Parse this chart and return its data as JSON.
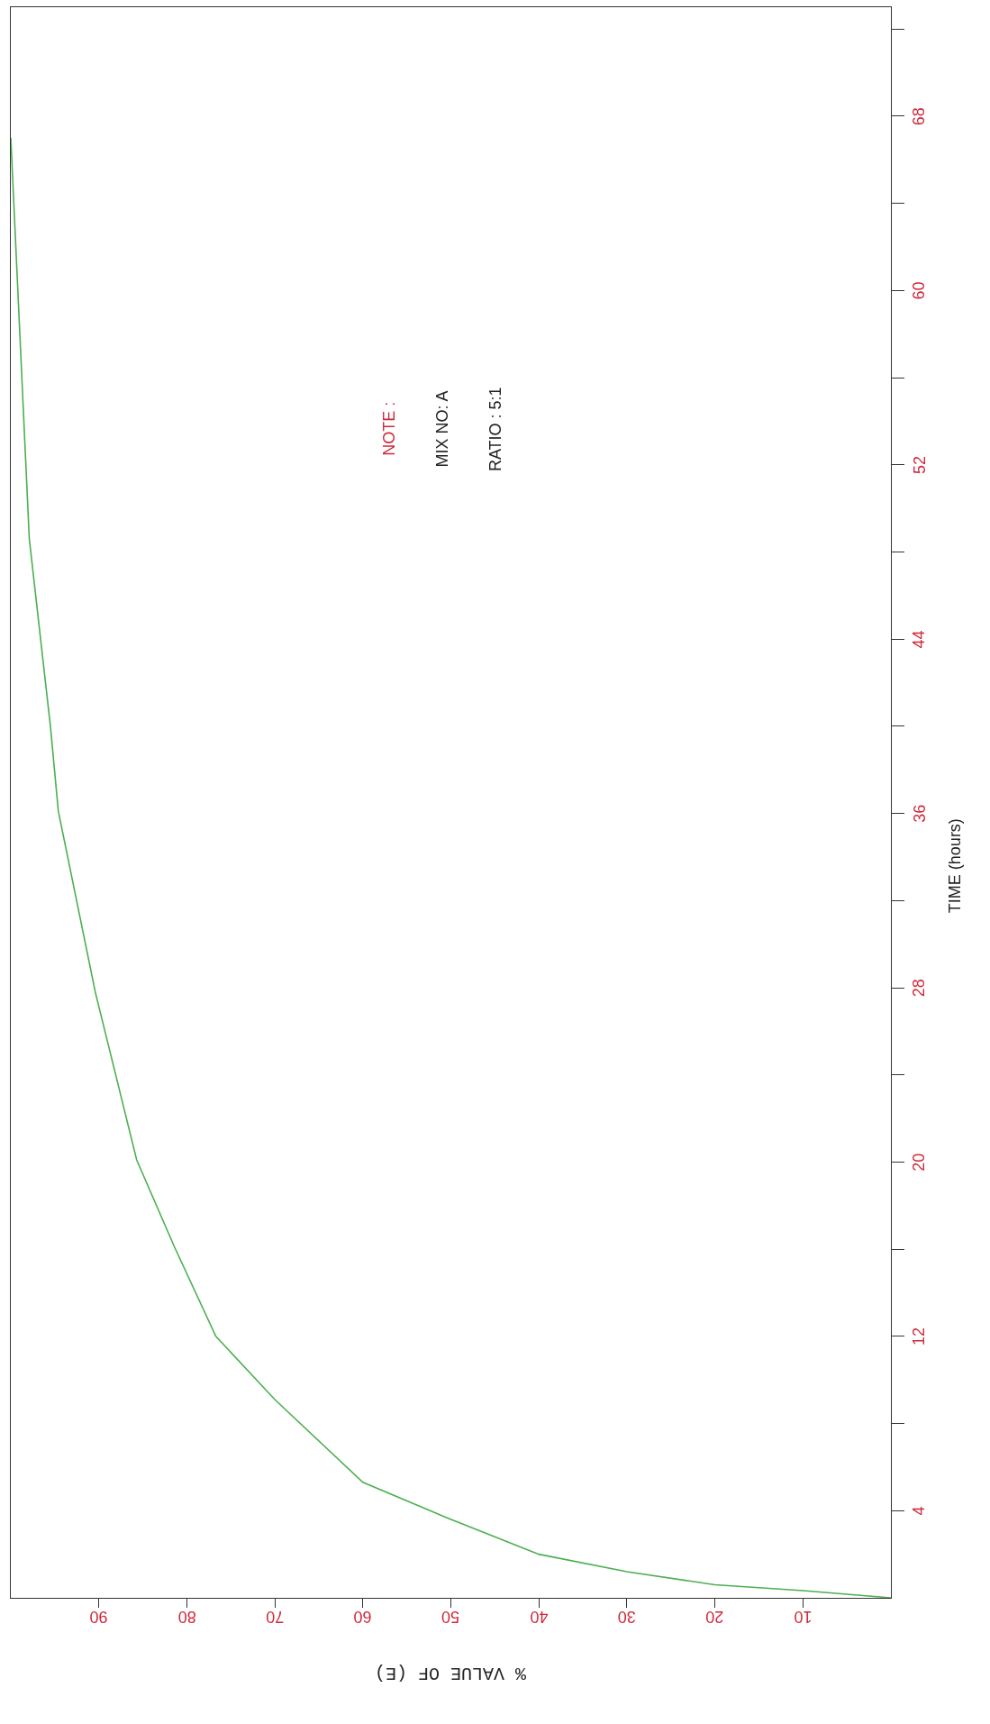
{
  "chart_data": {
    "type": "line",
    "xlabel": "% VALUE OF (E)",
    "ylabel": "TIME (hours)",
    "annotations": [
      "NOTE :",
      "MIX NO: A",
      "RATIO : 5:1"
    ],
    "x": [
      0,
      10,
      20,
      30,
      40,
      50,
      60,
      70,
      76.7,
      81.4,
      85.7,
      90.4,
      94.6,
      95.5,
      97.9,
      100
    ],
    "series": [
      {
        "color": "#4caf50",
        "values": [
          0,
          0.33,
          0.6,
          1.2,
          2.0,
          3.6,
          5.3,
          9.1,
          12.0,
          16.1,
          20.1,
          27.8,
          36.1,
          40,
          48.6,
          67
        ]
      }
    ],
    "xlim": [
      100,
      0
    ],
    "ylim": [
      0,
      73
    ],
    "xticks": [
      10,
      20,
      30,
      40,
      50,
      60,
      70,
      80,
      90
    ],
    "yticks": [
      {
        "value": 4,
        "label": "4"
      },
      {
        "value": 8,
        "label": null
      },
      {
        "value": 12,
        "label": "12"
      },
      {
        "value": 16,
        "label": null
      },
      {
        "value": 20,
        "label": "20"
      },
      {
        "value": 24,
        "label": null
      },
      {
        "value": 28,
        "label": "28"
      },
      {
        "value": 32,
        "label": null
      },
      {
        "value": 36,
        "label": "36"
      },
      {
        "value": 40,
        "label": null
      },
      {
        "value": 44,
        "label": "44"
      },
      {
        "value": 48,
        "label": null
      },
      {
        "value": 52,
        "label": "52"
      },
      {
        "value": 56,
        "label": null
      },
      {
        "value": 60,
        "label": "60"
      },
      {
        "value": 64,
        "label": null
      },
      {
        "value": 68,
        "label": "68"
      },
      {
        "value": 72,
        "label": null
      }
    ],
    "legend": false,
    "marker": "none",
    "line_style": "solid"
  }
}
